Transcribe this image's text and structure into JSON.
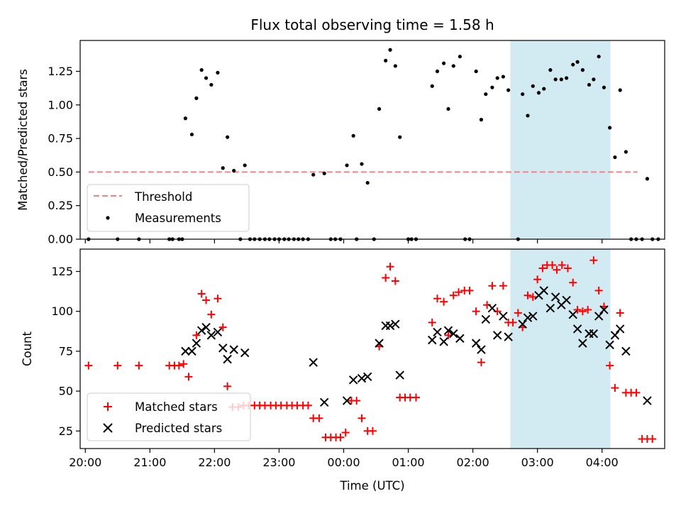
{
  "title": "Flux total observing time = 1.58 h",
  "colors": {
    "measurements": "#000000",
    "threshold": "#ff7f7f",
    "matched": "#ff0000",
    "predicted": "#000000",
    "highlight": "#add8e6"
  },
  "chart_data": [
    {
      "type": "scatter",
      "ylabel": "Matched/Predicted stars",
      "ylim": [
        0,
        1.48
      ],
      "yticks": [
        0.0,
        0.25,
        0.5,
        0.75,
        1.0,
        1.25
      ],
      "ytick_labels": [
        "0.00",
        "0.25",
        "0.50",
        "0.75",
        "1.00",
        "1.25"
      ],
      "xlim_hours": [
        19.92,
        28.97
      ],
      "highlight_span_hours": [
        26.58,
        28.13
      ],
      "legend": {
        "position": "lower left",
        "entries": [
          "Threshold",
          "Measurements"
        ]
      },
      "threshold": {
        "name": "Threshold",
        "y": 0.5,
        "x_range_hours": [
          20.05,
          28.55
        ]
      },
      "series": [
        {
          "name": "Measurements",
          "marker": "dot",
          "points": [
            [
              20.05,
              0.0
            ],
            [
              20.5,
              0.0
            ],
            [
              20.83,
              0.0
            ],
            [
              21.3,
              0.0
            ],
            [
              21.35,
              0.0
            ],
            [
              21.45,
              0.0
            ],
            [
              21.5,
              0.0
            ],
            [
              21.55,
              0.9
            ],
            [
              21.65,
              0.78
            ],
            [
              21.72,
              1.05
            ],
            [
              21.8,
              1.26
            ],
            [
              21.87,
              1.2
            ],
            [
              21.95,
              1.15
            ],
            [
              22.05,
              1.24
            ],
            [
              22.13,
              0.53
            ],
            [
              22.2,
              0.76
            ],
            [
              22.3,
              0.51
            ],
            [
              22.4,
              0.0
            ],
            [
              22.47,
              0.55
            ],
            [
              22.55,
              0.0
            ],
            [
              22.62,
              0.0
            ],
            [
              22.7,
              0.0
            ],
            [
              22.78,
              0.0
            ],
            [
              22.85,
              0.0
            ],
            [
              22.93,
              0.0
            ],
            [
              23.0,
              0.0
            ],
            [
              23.08,
              0.0
            ],
            [
              23.15,
              0.0
            ],
            [
              23.23,
              0.0
            ],
            [
              23.3,
              0.0
            ],
            [
              23.37,
              0.0
            ],
            [
              23.45,
              0.0
            ],
            [
              23.53,
              0.48
            ],
            [
              23.7,
              0.49
            ],
            [
              23.8,
              0.0
            ],
            [
              23.87,
              0.0
            ],
            [
              23.95,
              0.0
            ],
            [
              24.05,
              0.55
            ],
            [
              24.15,
              0.77
            ],
            [
              24.2,
              0.0
            ],
            [
              24.28,
              0.56
            ],
            [
              24.37,
              0.42
            ],
            [
              24.47,
              0.0
            ],
            [
              24.55,
              0.97
            ],
            [
              24.65,
              1.33
            ],
            [
              24.72,
              1.41
            ],
            [
              24.8,
              1.29
            ],
            [
              24.87,
              0.76
            ],
            [
              25.0,
              0.0
            ],
            [
              25.05,
              0.0
            ],
            [
              25.12,
              0.0
            ],
            [
              25.37,
              1.14
            ],
            [
              25.45,
              1.25
            ],
            [
              25.55,
              1.31
            ],
            [
              25.62,
              0.97
            ],
            [
              25.7,
              1.29
            ],
            [
              25.8,
              1.36
            ],
            [
              25.88,
              0.0
            ],
            [
              25.95,
              0.0
            ],
            [
              26.05,
              1.25
            ],
            [
              26.13,
              0.89
            ],
            [
              26.2,
              1.08
            ],
            [
              26.3,
              1.13
            ],
            [
              26.38,
              1.2
            ],
            [
              26.47,
              1.21
            ],
            [
              26.55,
              1.11
            ],
            [
              26.7,
              0.0
            ],
            [
              26.77,
              1.08
            ],
            [
              26.85,
              0.92
            ],
            [
              26.93,
              1.14
            ],
            [
              27.02,
              1.09
            ],
            [
              27.1,
              1.12
            ],
            [
              27.2,
              1.26
            ],
            [
              27.28,
              1.19
            ],
            [
              27.37,
              1.19
            ],
            [
              27.45,
              1.2
            ],
            [
              27.55,
              1.3
            ],
            [
              27.62,
              1.32
            ],
            [
              27.7,
              1.26
            ],
            [
              27.8,
              1.15
            ],
            [
              27.87,
              1.19
            ],
            [
              27.95,
              1.36
            ],
            [
              28.03,
              1.13
            ],
            [
              28.12,
              0.83
            ],
            [
              28.2,
              0.61
            ],
            [
              28.28,
              1.11
            ],
            [
              28.37,
              0.65
            ],
            [
              28.45,
              0.0
            ],
            [
              28.53,
              0.0
            ],
            [
              28.62,
              0.0
            ],
            [
              28.7,
              0.45
            ],
            [
              28.78,
              0.0
            ],
            [
              28.87,
              0.0
            ]
          ]
        }
      ]
    },
    {
      "type": "scatter",
      "ylabel": "Count",
      "xlabel": "Time (UTC)",
      "ylim": [
        14,
        139
      ],
      "yticks": [
        25,
        50,
        75,
        100,
        125
      ],
      "xlim_hours": [
        19.92,
        28.97
      ],
      "xticks_hours": [
        20,
        21,
        22,
        23,
        24,
        25,
        26,
        27,
        28
      ],
      "xtick_labels": [
        "20:00",
        "21:00",
        "22:00",
        "23:00",
        "00:00",
        "01:00",
        "02:00",
        "03:00",
        "04:00"
      ],
      "highlight_span_hours": [
        26.58,
        28.13
      ],
      "legend": {
        "position": "lower left",
        "entries": [
          "Matched stars",
          "Predicted stars"
        ]
      },
      "series": [
        {
          "name": "Matched stars",
          "marker": "plus",
          "points": [
            [
              20.05,
              66
            ],
            [
              20.5,
              66
            ],
            [
              20.83,
              66
            ],
            [
              21.3,
              66
            ],
            [
              21.38,
              66
            ],
            [
              21.45,
              66
            ],
            [
              21.52,
              67
            ],
            [
              21.6,
              59
            ],
            [
              21.72,
              85
            ],
            [
              21.8,
              111
            ],
            [
              21.87,
              107
            ],
            [
              21.95,
              98
            ],
            [
              22.05,
              108
            ],
            [
              22.13,
              90
            ],
            [
              22.2,
              53
            ],
            [
              22.28,
              40
            ],
            [
              22.37,
              40
            ],
            [
              22.45,
              41
            ],
            [
              22.53,
              41
            ],
            [
              22.62,
              41
            ],
            [
              22.7,
              41
            ],
            [
              22.78,
              41
            ],
            [
              22.87,
              41
            ],
            [
              22.95,
              41
            ],
            [
              23.03,
              41
            ],
            [
              23.12,
              41
            ],
            [
              23.2,
              41
            ],
            [
              23.28,
              41
            ],
            [
              23.37,
              41
            ],
            [
              23.45,
              41
            ],
            [
              23.53,
              33
            ],
            [
              23.62,
              33
            ],
            [
              23.72,
              21
            ],
            [
              23.8,
              21
            ],
            [
              23.88,
              21
            ],
            [
              23.95,
              21
            ],
            [
              24.03,
              24
            ],
            [
              24.12,
              44
            ],
            [
              24.2,
              44
            ],
            [
              24.28,
              33
            ],
            [
              24.37,
              25
            ],
            [
              24.45,
              25
            ],
            [
              24.55,
              78
            ],
            [
              24.65,
              121
            ],
            [
              24.72,
              128
            ],
            [
              24.8,
              119
            ],
            [
              24.87,
              46
            ],
            [
              24.95,
              46
            ],
            [
              25.03,
              46
            ],
            [
              25.12,
              46
            ],
            [
              25.37,
              93
            ],
            [
              25.45,
              108
            ],
            [
              25.55,
              106
            ],
            [
              25.62,
              85
            ],
            [
              25.7,
              110
            ],
            [
              25.78,
              112
            ],
            [
              25.87,
              113
            ],
            [
              25.95,
              113
            ],
            [
              26.05,
              100
            ],
            [
              26.13,
              68
            ],
            [
              26.22,
              104
            ],
            [
              26.3,
              116
            ],
            [
              26.38,
              100
            ],
            [
              26.47,
              116
            ],
            [
              26.55,
              93
            ],
            [
              26.62,
              93
            ],
            [
              26.7,
              99
            ],
            [
              26.77,
              90
            ],
            [
              26.85,
              110
            ],
            [
              26.93,
              109
            ],
            [
              27.0,
              120
            ],
            [
              27.08,
              127
            ],
            [
              27.15,
              129
            ],
            [
              27.23,
              129
            ],
            [
              27.3,
              126
            ],
            [
              27.38,
              129
            ],
            [
              27.47,
              127
            ],
            [
              27.55,
              118
            ],
            [
              27.62,
              101
            ],
            [
              27.7,
              100
            ],
            [
              27.78,
              101
            ],
            [
              27.87,
              132
            ],
            [
              27.95,
              113
            ],
            [
              28.03,
              103
            ],
            [
              28.12,
              66
            ],
            [
              28.2,
              52
            ],
            [
              28.28,
              99
            ],
            [
              28.37,
              49
            ],
            [
              28.45,
              49
            ],
            [
              28.53,
              49
            ],
            [
              28.62,
              20
            ],
            [
              28.7,
              20
            ],
            [
              28.78,
              20
            ]
          ]
        },
        {
          "name": "Predicted stars",
          "marker": "x",
          "points": [
            [
              21.55,
              75
            ],
            [
              21.65,
              75
            ],
            [
              21.72,
              80
            ],
            [
              21.8,
              88
            ],
            [
              21.87,
              90
            ],
            [
              21.95,
              85
            ],
            [
              22.05,
              87
            ],
            [
              22.13,
              77
            ],
            [
              22.2,
              70
            ],
            [
              22.3,
              76
            ],
            [
              22.47,
              74
            ],
            [
              23.53,
              68
            ],
            [
              23.7,
              43
            ],
            [
              24.05,
              44
            ],
            [
              24.15,
              57
            ],
            [
              24.28,
              58
            ],
            [
              24.37,
              59
            ],
            [
              24.55,
              80
            ],
            [
              24.65,
              91
            ],
            [
              24.72,
              91
            ],
            [
              24.8,
              92
            ],
            [
              24.87,
              60
            ],
            [
              25.37,
              82
            ],
            [
              25.45,
              87
            ],
            [
              25.55,
              81
            ],
            [
              25.62,
              88
            ],
            [
              25.7,
              86
            ],
            [
              25.8,
              83
            ],
            [
              26.05,
              80
            ],
            [
              26.13,
              76
            ],
            [
              26.2,
              95
            ],
            [
              26.3,
              102
            ],
            [
              26.38,
              85
            ],
            [
              26.47,
              97
            ],
            [
              26.55,
              84
            ],
            [
              26.77,
              92
            ],
            [
              26.85,
              96
            ],
            [
              26.93,
              97
            ],
            [
              27.02,
              110
            ],
            [
              27.1,
              113
            ],
            [
              27.2,
              102
            ],
            [
              27.28,
              109
            ],
            [
              27.37,
              104
            ],
            [
              27.45,
              107
            ],
            [
              27.55,
              98
            ],
            [
              27.62,
              89
            ],
            [
              27.7,
              80
            ],
            [
              27.8,
              86
            ],
            [
              27.87,
              86
            ],
            [
              27.95,
              97
            ],
            [
              28.03,
              101
            ],
            [
              28.12,
              79
            ],
            [
              28.2,
              85
            ],
            [
              28.28,
              89
            ],
            [
              28.37,
              75
            ],
            [
              28.7,
              44
            ]
          ]
        }
      ]
    }
  ]
}
